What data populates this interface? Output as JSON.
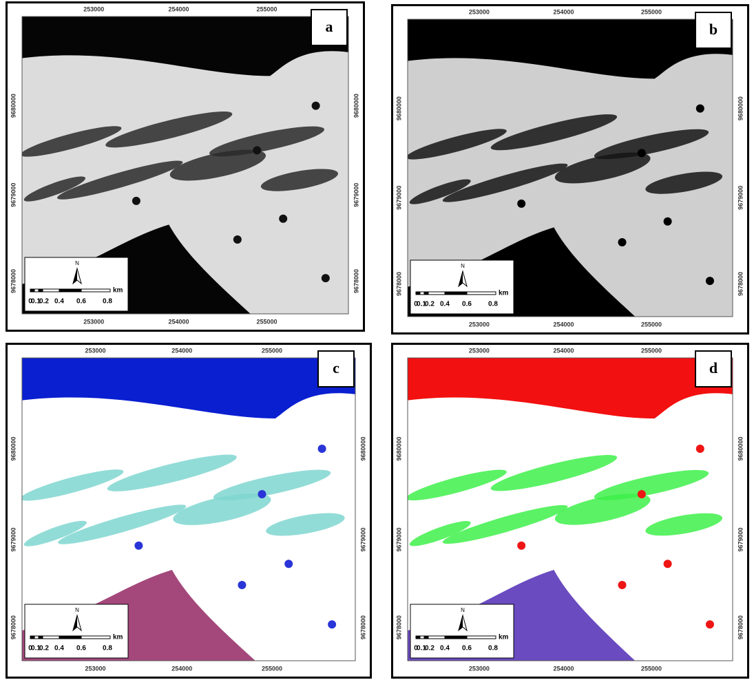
{
  "panels": [
    {
      "label": "a"
    },
    {
      "label": "b"
    },
    {
      "label": "c"
    },
    {
      "label": "d"
    }
  ],
  "axes": {
    "x_ticks": [
      253000,
      254000,
      255000
    ],
    "y_ticks": [
      9680000,
      9679000,
      9678000
    ]
  },
  "scale": {
    "north": "N",
    "labels": [
      "0",
      "0.1",
      "0.2",
      "0.4",
      "0.6",
      "0.8"
    ],
    "unit": "km"
  }
}
